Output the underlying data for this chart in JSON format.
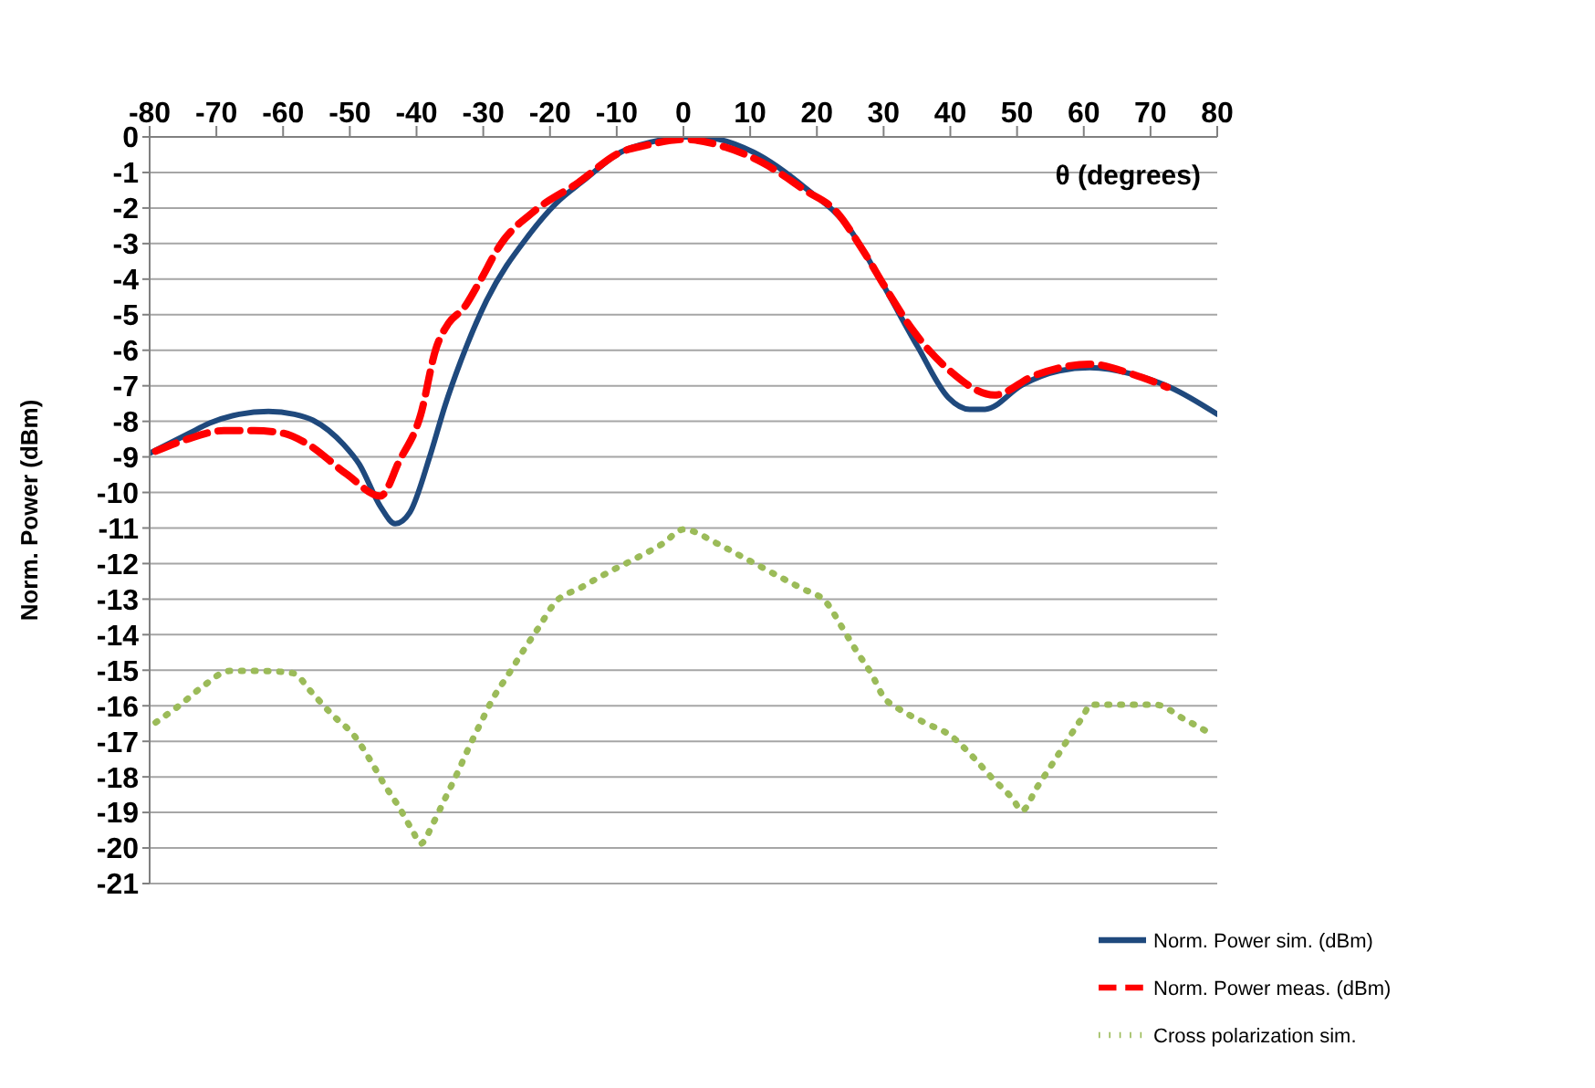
{
  "chart_data": {
    "type": "line",
    "xlabel": "θ (degrees)",
    "ylabel": "Norm. Power (dBm)",
    "xlim": [
      -80,
      80
    ],
    "xticks": [
      -80,
      -70,
      -60,
      -50,
      -40,
      -30,
      -20,
      -10,
      0,
      10,
      20,
      30,
      40,
      50,
      60,
      70,
      80
    ],
    "ylim": [
      -21,
      0
    ],
    "yticks": [
      0,
      -1,
      -2,
      -3,
      -4,
      -5,
      -6,
      -7,
      -8,
      -9,
      -10,
      -11,
      -12,
      -13,
      -14,
      -15,
      -16,
      -17,
      -18,
      -19,
      -20,
      -21
    ],
    "grid": "y",
    "legend": "bottom right",
    "marker": "none",
    "series": [
      {
        "name": "Norm. Power sim. (dBm)",
        "color": "#1f497d",
        "line_style": "solid",
        "x": [
          -80,
          -74,
          -71,
          -66.6,
          -62.2,
          -58.3,
          -55.5,
          -50.9,
          -48.6,
          -45.4,
          -43.2,
          -41,
          -38,
          -35.7,
          -33.4,
          -29.5,
          -23.2,
          -19.1,
          -14.9,
          -9.4,
          -4.7,
          0,
          4,
          10.5,
          18.3,
          24.9,
          29.5,
          35.1,
          39.7,
          42.9,
          45.2,
          50.8,
          56.3,
          60.9,
          67.4,
          72.9,
          80
        ],
        "values": [
          -8.9,
          -8.33,
          -8.05,
          -7.8,
          -7.72,
          -7.8,
          -7.97,
          -8.66,
          -9.2,
          -10.4,
          -10.88,
          -10.56,
          -8.98,
          -7.54,
          -6.32,
          -4.6,
          -2.77,
          -1.87,
          -1.22,
          -0.43,
          -0.14,
          0,
          -0.03,
          -0.43,
          -1.44,
          -2.59,
          -4.02,
          -5.9,
          -7.33,
          -7.66,
          -7.66,
          -6.97,
          -6.58,
          -6.49,
          -6.68,
          -7.04,
          -7.8
        ]
      },
      {
        "name": "Norm. Power meas. (dBm)",
        "color": "#ff0000",
        "line_style": "dashed",
        "x": [
          -79.1,
          -74,
          -68.9,
          -64.3,
          -60.1,
          -56.5,
          -50.5,
          -45.4,
          -42.6,
          -39.4,
          -37.1,
          -35.2,
          -32.9,
          -30.6,
          -27.4,
          -22.3,
          -15.8,
          -9.4,
          -5.7,
          0.3,
          6.3,
          11.8,
          18.3,
          22.8,
          26.8,
          30.5,
          34.2,
          39.7,
          46.6,
          52.6,
          60.9,
          67.4,
          72.5
        ],
        "values": [
          -8.84,
          -8.48,
          -8.26,
          -8.26,
          -8.33,
          -8.62,
          -9.48,
          -10.1,
          -9.12,
          -7.83,
          -5.96,
          -5.24,
          -4.81,
          -4.09,
          -3.02,
          -2.08,
          -1.29,
          -0.43,
          -0.24,
          -0.07,
          -0.29,
          -0.72,
          -1.51,
          -2.08,
          -3.16,
          -4.31,
          -5.39,
          -6.54,
          -7.26,
          -6.71,
          -6.39,
          -6.68,
          -7.04
        ]
      },
      {
        "name": "Cross polarization  sim.",
        "color": "#9bbb59",
        "line_style": "dotted",
        "x": [
          -79.1,
          -75.4,
          -72,
          -68,
          -63.4,
          -58.6,
          -55.5,
          -52.6,
          -49.3,
          -47,
          -44.9,
          -42.6,
          -40.5,
          -39.4,
          -37.5,
          -35.7,
          -33.9,
          -32.2,
          -30.4,
          -28.5,
          -26.2,
          -24,
          -21.6,
          -19.3,
          -15.4,
          -11.4,
          -7.2,
          -3.1,
          0,
          5.1,
          9.3,
          13.3,
          17.5,
          21.4,
          23.7,
          25.9,
          28.2,
          30.1,
          31.9,
          36.1,
          40.2,
          43.4,
          46.3,
          49.4,
          50.7,
          53,
          55.3,
          57.6,
          59.9,
          61,
          65.9,
          70.8,
          74.9,
          79
        ],
        "values": [
          -16.47,
          -15.97,
          -15.45,
          -15.02,
          -15.02,
          -15.08,
          -15.67,
          -16.26,
          -16.85,
          -17.51,
          -18.19,
          -18.86,
          -19.55,
          -19.88,
          -19.3,
          -18.6,
          -17.9,
          -17.19,
          -16.49,
          -15.78,
          -15.11,
          -14.45,
          -13.77,
          -13.11,
          -12.68,
          -12.26,
          -11.86,
          -11.44,
          -11.04,
          -11.44,
          -11.86,
          -12.26,
          -12.68,
          -13.09,
          -13.77,
          -14.45,
          -15.11,
          -15.78,
          -16.04,
          -16.47,
          -16.86,
          -17.44,
          -18.04,
          -18.63,
          -18.95,
          -18.29,
          -17.63,
          -16.95,
          -16.29,
          -15.97,
          -15.97,
          -15.97,
          -16.36,
          -16.78
        ]
      }
    ]
  }
}
